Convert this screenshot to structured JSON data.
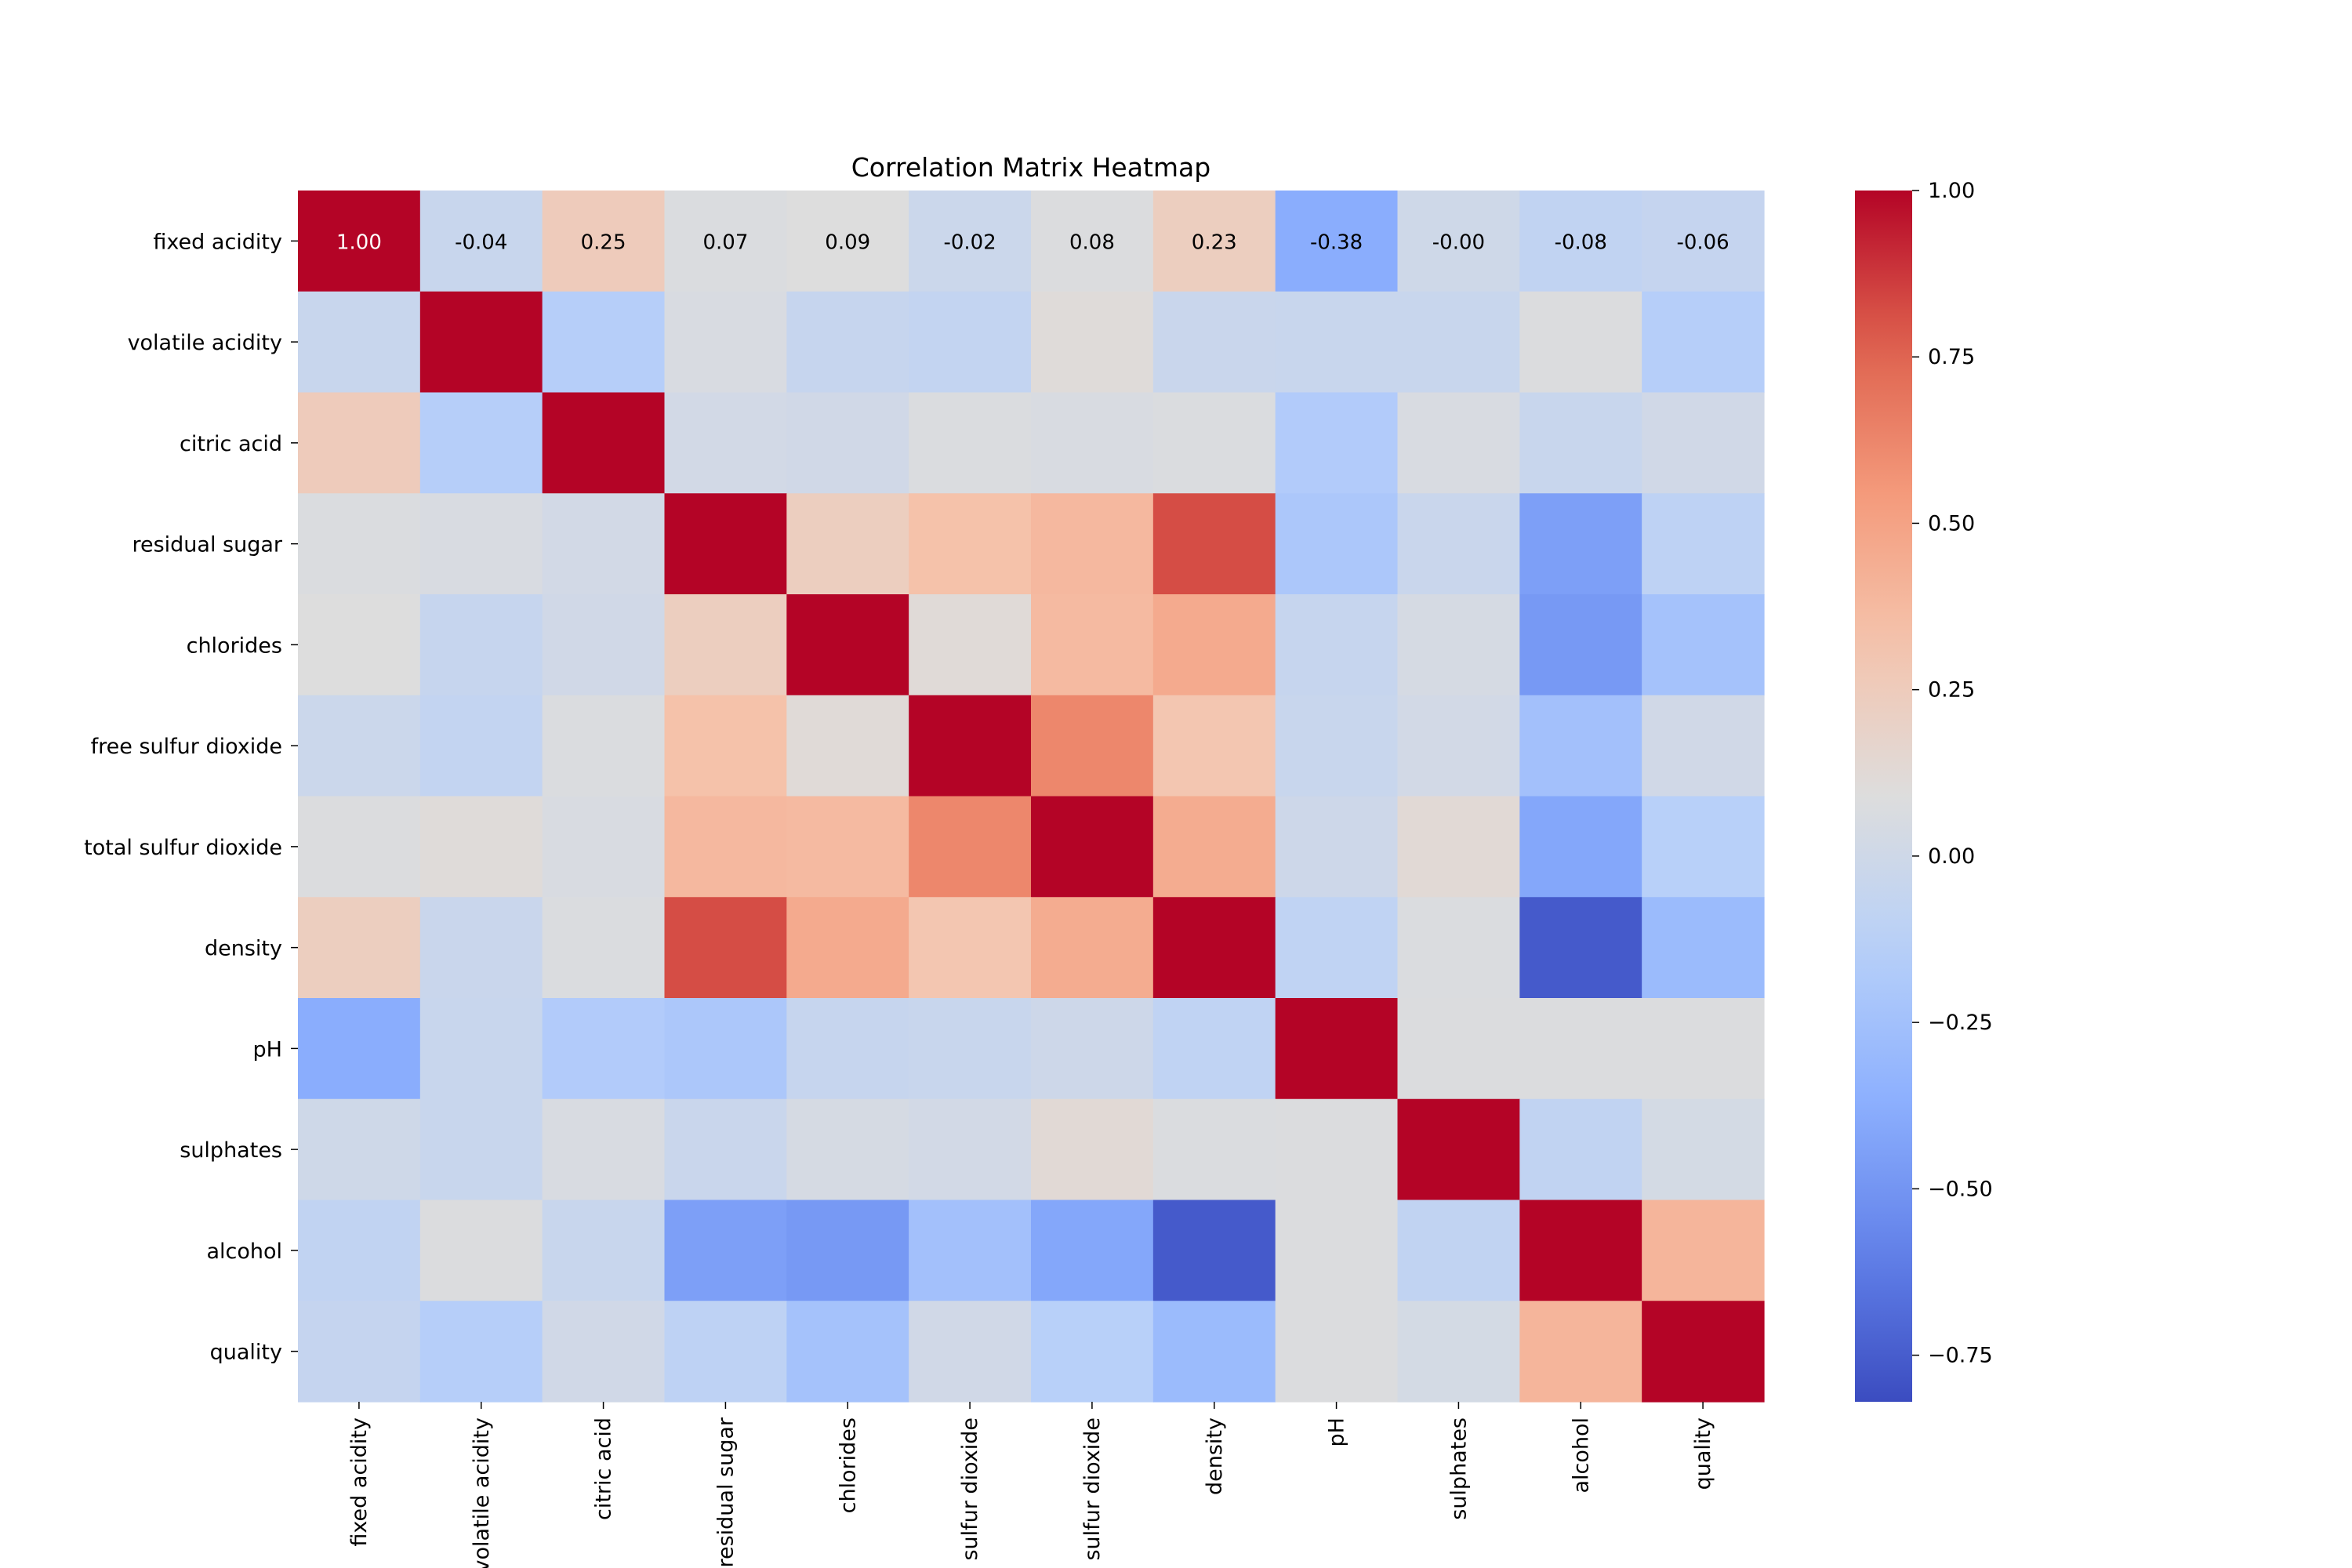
{
  "chart_data": {
    "type": "heatmap",
    "title": "Correlation Matrix Heatmap",
    "xlabel": "",
    "ylabel": "",
    "variables": [
      "fixed acidity",
      "volatile acidity",
      "citric acid",
      "residual sugar",
      "chlorides",
      "free sulfur dioxide",
      "total sulfur dioxide",
      "density",
      "pH",
      "sulphates",
      "alcohol",
      "quality"
    ],
    "x_tick_labels": [
      "fixed acidity",
      "volatile acidity",
      "citric acid",
      "residual sugar",
      "chlorides",
      "sulfur dioxide",
      "sulfur dioxide",
      "density",
      "pH",
      "sulphates",
      "alcohol",
      "quality"
    ],
    "matrix": [
      [
        1.0,
        -0.04,
        0.25,
        0.07,
        0.09,
        -0.02,
        0.08,
        0.23,
        -0.38,
        -0.0,
        -0.08,
        -0.06
      ],
      [
        -0.04,
        1.0,
        -0.15,
        0.06,
        -0.05,
        -0.07,
        0.11,
        -0.03,
        -0.04,
        -0.04,
        0.08,
        -0.15
      ],
      [
        0.25,
        -0.15,
        1.0,
        0.02,
        0.01,
        0.07,
        0.06,
        0.07,
        -0.17,
        0.06,
        -0.04,
        0.01
      ],
      [
        0.07,
        0.06,
        0.02,
        1.0,
        0.23,
        0.33,
        0.38,
        0.82,
        -0.2,
        -0.03,
        -0.45,
        -0.1
      ],
      [
        0.09,
        -0.05,
        0.01,
        0.23,
        1.0,
        0.12,
        0.37,
        0.46,
        -0.05,
        0.04,
        -0.48,
        -0.24
      ],
      [
        -0.02,
        -0.07,
        0.07,
        0.33,
        0.12,
        1.0,
        0.62,
        0.3,
        -0.04,
        0.02,
        -0.25,
        0.01
      ],
      [
        0.08,
        0.11,
        0.06,
        0.38,
        0.37,
        0.62,
        1.0,
        0.45,
        -0.01,
        0.13,
        -0.41,
        -0.14
      ],
      [
        0.23,
        -0.03,
        0.07,
        0.82,
        0.46,
        0.3,
        0.45,
        1.0,
        -0.09,
        0.07,
        -0.76,
        -0.29
      ],
      [
        -0.38,
        -0.04,
        -0.17,
        -0.2,
        -0.05,
        -0.04,
        -0.01,
        -0.09,
        1.0,
        0.08,
        0.08,
        0.08
      ],
      [
        -0.0,
        -0.04,
        0.06,
        -0.03,
        0.04,
        0.02,
        0.13,
        0.07,
        0.08,
        1.0,
        -0.08,
        0.03
      ],
      [
        -0.08,
        0.08,
        -0.04,
        -0.45,
        -0.48,
        -0.25,
        -0.41,
        -0.76,
        0.08,
        -0.08,
        1.0,
        0.4
      ],
      [
        -0.06,
        -0.15,
        0.01,
        -0.1,
        -0.24,
        0.01,
        -0.14,
        -0.29,
        0.08,
        0.03,
        0.4,
        1.0
      ]
    ],
    "annotated_row": 0,
    "annotations": [
      "1.00",
      "-0.04",
      "0.25",
      "0.07",
      "0.09",
      "-0.02",
      "0.08",
      "0.23",
      "-0.38",
      "-0.00",
      "-0.08",
      "-0.06"
    ],
    "colormap": "coolwarm",
    "vmin": -0.82,
    "vmax": 1.0,
    "colorbar": {
      "ticks": [
        1.0,
        0.75,
        0.5,
        0.25,
        0.0,
        -0.25,
        -0.5,
        -0.75
      ],
      "tick_labels": [
        "1.00",
        "0.75",
        "0.50",
        "0.25",
        "0.00",
        "−0.25",
        "−0.50",
        "−0.75"
      ]
    },
    "grid": false,
    "legend": "colorbar-right"
  }
}
